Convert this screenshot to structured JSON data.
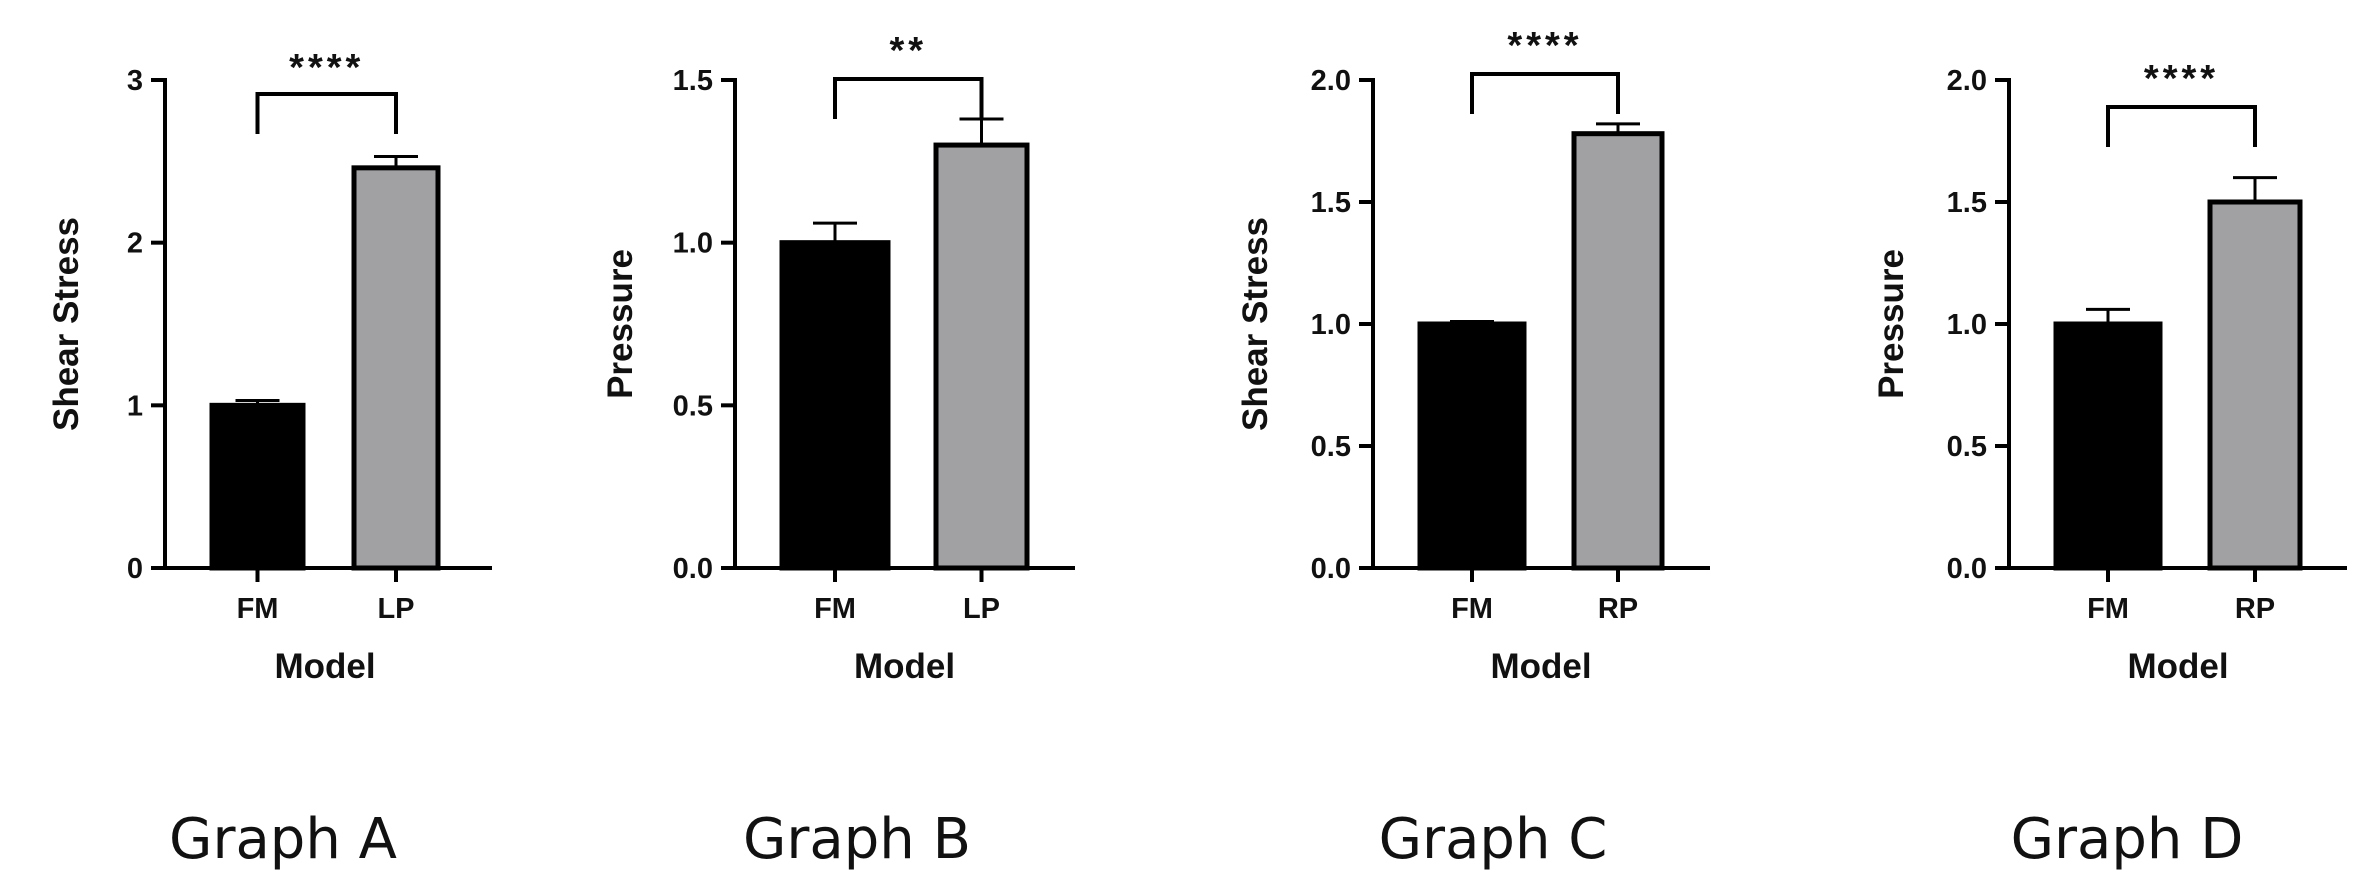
{
  "chart_data": [
    {
      "type": "bar",
      "caption": "Graph A",
      "xlabel": "Model",
      "ylabel": "Shear Stress",
      "ylim": [
        0,
        3
      ],
      "yticks": [
        0,
        1,
        2,
        3
      ],
      "ytick_labels": [
        "0",
        "1",
        "2",
        "3"
      ],
      "categories": [
        "FM",
        "LP"
      ],
      "values": [
        1.0,
        2.46
      ],
      "errors": [
        0.03,
        0.07
      ],
      "bar_colors": [
        "#000000",
        "#a1a1a4"
      ],
      "significance": "****",
      "grid": false
    },
    {
      "type": "bar",
      "caption": "Graph B",
      "xlabel": "Model",
      "ylabel": "Pressure",
      "ylim": [
        0,
        1.5
      ],
      "yticks": [
        0,
        0.5,
        1.0,
        1.5
      ],
      "ytick_labels": [
        "0.0",
        "0.5",
        "1.0",
        "1.5"
      ],
      "categories": [
        "FM",
        "LP"
      ],
      "values": [
        1.0,
        1.3
      ],
      "errors": [
        0.06,
        0.08
      ],
      "bar_colors": [
        "#000000",
        "#a1a1a4"
      ],
      "significance": "**",
      "grid": false
    },
    {
      "type": "bar",
      "caption": "Graph C",
      "xlabel": "Model",
      "ylabel": "Shear Stress",
      "ylim": [
        0,
        2.0
      ],
      "yticks": [
        0,
        0.5,
        1.0,
        1.5,
        2.0
      ],
      "ytick_labels": [
        "0.0",
        "0.5",
        "1.0",
        "1.5",
        "2.0"
      ],
      "categories": [
        "FM",
        "RP"
      ],
      "values": [
        1.0,
        1.78
      ],
      "errors": [
        0.01,
        0.04
      ],
      "bar_colors": [
        "#000000",
        "#a1a1a4"
      ],
      "significance": "****",
      "grid": false
    },
    {
      "type": "bar",
      "caption": "Graph D",
      "xlabel": "Model",
      "ylabel": "Pressure",
      "ylim": [
        0,
        2.0
      ],
      "yticks": [
        0,
        0.5,
        1.0,
        1.5,
        2.0
      ],
      "ytick_labels": [
        "0.0",
        "0.5",
        "1.0",
        "1.5",
        "2.0"
      ],
      "categories": [
        "FM",
        "RP"
      ],
      "values": [
        1.0,
        1.5
      ],
      "errors": [
        0.06,
        0.1
      ],
      "bar_colors": [
        "#000000",
        "#a1a1a4"
      ],
      "significance": "****",
      "grid": false
    }
  ]
}
